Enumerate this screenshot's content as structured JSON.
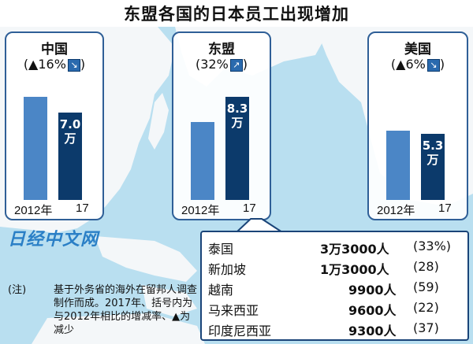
{
  "title": "东盟各国的日本员工出现增加",
  "chart_data": {
    "type": "bar",
    "unit": "万",
    "categories": [
      "2012年",
      "17"
    ],
    "panels": [
      {
        "name": "中国",
        "change": "(▲16%",
        "direction": "down",
        "values": [
          8.3,
          7.0
        ],
        "label_2017": "7.0",
        "unit_label": "万"
      },
      {
        "name": "东盟",
        "change": "(32%",
        "direction": "up",
        "values": [
          6.3,
          8.3
        ],
        "label_2017": "8.3",
        "unit_label": "万"
      },
      {
        "name": "美国",
        "change": "(▲6%",
        "direction": "down",
        "values": [
          5.6,
          5.3
        ],
        "label_2017": "5.3",
        "unit_label": "万"
      }
    ],
    "colors": {
      "y2012": "#4b86c6",
      "y2017": "#0c3a6b"
    }
  },
  "breakdown": [
    {
      "country": "泰国",
      "value": "3万3000人",
      "pct": "(33%)"
    },
    {
      "country": "新加坡",
      "value": "1万3000人",
      "pct": "(28)"
    },
    {
      "country": "越南",
      "value": "9900人",
      "pct": "(59)"
    },
    {
      "country": "马来西亚",
      "value": "9600人",
      "pct": "(22)"
    },
    {
      "country": "印度尼西亚",
      "value": "9300人",
      "pct": "(37)"
    }
  ],
  "note": {
    "lead": "(注)",
    "text": "基于外务省的海外在留邦人调查制作而成。2017年、括号内为与2012年相比的增减率、▲为减少"
  },
  "watermark": "日经中文网",
  "arrow_icons": {
    "up": "↗",
    "down": "↘"
  }
}
